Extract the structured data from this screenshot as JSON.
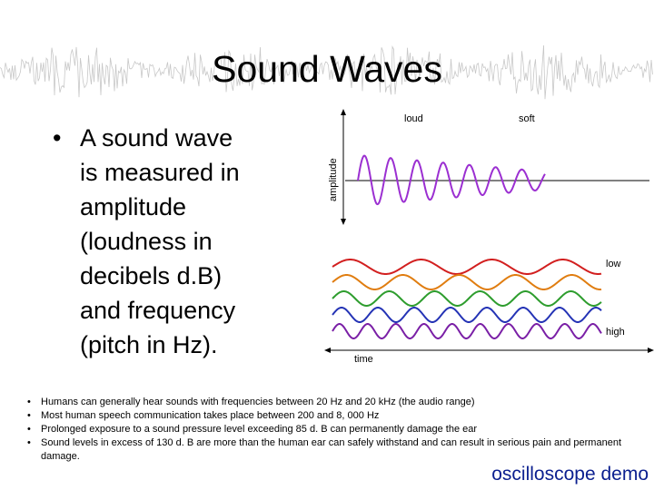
{
  "slide": {
    "title": "Sound Waves",
    "main_bullet": {
      "marker": "•",
      "lines": [
        "A sound wave",
        "is measured in",
        "amplitude",
        "(loudness in",
        "decibels d.B)",
        "and frequency",
        "(pitch in Hz)."
      ]
    },
    "diagram": {
      "amplitude_label": "amplitude",
      "loud_label": "loud",
      "soft_label": "soft",
      "low_label": "low",
      "high_label": "high",
      "time_label": "time",
      "wave_colors": [
        "#d21f1f",
        "#e07d10",
        "#2e9d2e",
        "#2433b5",
        "#7a1fa6"
      ],
      "amplitude_wave_color": "#9b2fd1"
    },
    "facts": [
      {
        "marker": "•",
        "text": "Humans can generally hear sounds with frequencies between 20 Hz and 20 kHz (the audio range)"
      },
      {
        "marker": "•",
        "text": "Most human speech communication takes place between 200 and 8, 000 Hz"
      },
      {
        "marker": "•",
        "text": "Prolonged exposure to a sound pressure level exceeding 85 d. B can permanently damage the ear"
      },
      {
        "marker": "•",
        "text": "Sound levels in excess of 130 d. B are more than the human ear can safely withstand and can result in serious pain and permanent damage."
      }
    ],
    "demo_link": "oscilloscope demo"
  }
}
